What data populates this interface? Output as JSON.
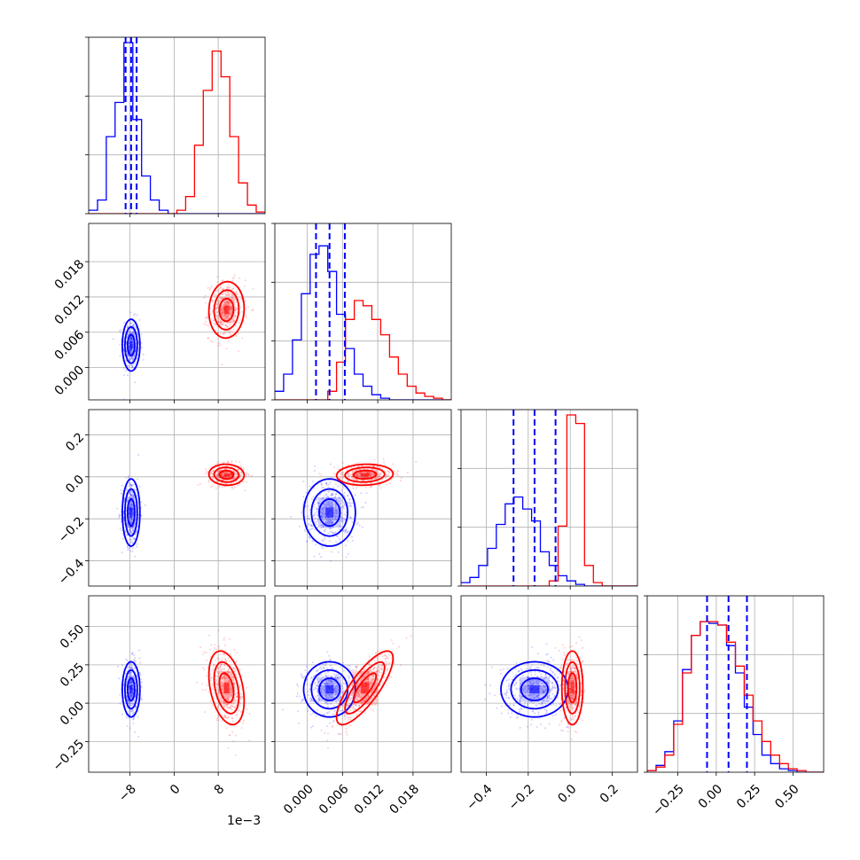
{
  "chart_data": {
    "type": "corner",
    "grid": true,
    "x_offset_label": "1e−3",
    "series": [
      {
        "name": "",
        "color": "#0000ff",
        "mean": [
          -0.0078,
          0.0038,
          -0.17,
          0.09
        ],
        "sd": [
          0.0008,
          0.0022,
          0.08,
          0.09
        ],
        "corr": [
          0,
          0,
          0,
          0,
          0,
          0
        ]
      },
      {
        "name": "",
        "color": "#ff0000",
        "mean": [
          0.0095,
          0.0098,
          0.01,
          0.1
        ],
        "sd": [
          0.0016,
          0.0024,
          0.025,
          0.12
        ],
        "corr": [
          0.05,
          -0.05,
          -0.35,
          0.08,
          0.8,
          0
        ]
      }
    ],
    "quantile_lines": {
      "color": "#0000ff",
      "style": "dashed",
      "values": [
        [
          -0.0088,
          -0.0078,
          -0.0068
        ],
        [
          0.0015,
          0.0038,
          0.0064
        ],
        [
          -0.27,
          -0.17,
          -0.07
        ],
        [
          -0.06,
          0.08,
          0.2
        ]
      ]
    },
    "axes": [
      {
        "range": [
          -0.0155,
          0.0165
        ],
        "ticks": [
          -0.008,
          0,
          0.008
        ],
        "tick_labels": [
          "−8",
          "0",
          "8"
        ]
      },
      {
        "range": [
          -0.0055,
          0.0245
        ],
        "ticks": [
          0,
          0.006,
          0.012,
          0.018
        ],
        "tick_labels": [
          "0.000",
          "0.006",
          "0.012",
          "0.018"
        ]
      },
      {
        "range": [
          -0.52,
          0.32
        ],
        "ticks": [
          -0.4,
          -0.2,
          0,
          0.2
        ],
        "tick_labels": [
          "−0.4",
          "−0.2",
          "0.0",
          "0.2"
        ]
      },
      {
        "range": [
          -0.45,
          0.7
        ],
        "ticks": [
          -0.25,
          0,
          0.25,
          0.5
        ],
        "tick_labels": [
          "−0.25",
          "0.00",
          "0.25",
          "0.50"
        ]
      }
    ],
    "histograms": [
      {
        "bins": 20,
        "blue": [
          0.02,
          0.08,
          0.45,
          0.65,
          1.0,
          0.55,
          0.22,
          0.08,
          0.02,
          0,
          0,
          0,
          0,
          0,
          0,
          0,
          0,
          0,
          0,
          0
        ],
        "red": [
          0,
          0,
          0,
          0,
          0,
          0,
          0,
          0,
          0,
          0,
          0.02,
          0.1,
          0.4,
          0.72,
          0.95,
          0.8,
          0.45,
          0.18,
          0.05,
          0.01
        ]
      },
      {
        "bins": 20,
        "blue": [
          0.05,
          0.15,
          0.35,
          0.62,
          0.85,
          0.9,
          0.75,
          0.5,
          0.3,
          0.15,
          0.08,
          0.03,
          0.01,
          0,
          0,
          0,
          0,
          0,
          0,
          0
        ],
        "red": [
          0,
          0,
          0,
          0,
          0,
          0,
          0.05,
          0.22,
          0.47,
          0.58,
          0.55,
          0.47,
          0.38,
          0.25,
          0.15,
          0.08,
          0.04,
          0.02,
          0.01,
          0
        ]
      },
      {
        "bins": 20,
        "blue": [
          0.02,
          0.05,
          0.12,
          0.22,
          0.36,
          0.48,
          0.52,
          0.45,
          0.38,
          0.2,
          0.12,
          0.06,
          0.03,
          0.01,
          0,
          0,
          0,
          0,
          0,
          0
        ],
        "red": [
          0,
          0,
          0,
          0,
          0,
          0,
          0,
          0,
          0,
          0,
          0.03,
          0.35,
          1.0,
          0.95,
          0.12,
          0.02,
          0,
          0,
          0,
          0
        ]
      },
      {
        "bins": 20,
        "blue": [
          0.01,
          0.04,
          0.12,
          0.3,
          0.6,
          0.8,
          0.88,
          0.87,
          0.86,
          0.74,
          0.58,
          0.38,
          0.22,
          0.1,
          0.05,
          0.02,
          0.01,
          0,
          0,
          0
        ],
        "red": [
          0.01,
          0.03,
          0.1,
          0.28,
          0.58,
          0.8,
          0.88,
          0.88,
          0.86,
          0.76,
          0.62,
          0.45,
          0.3,
          0.18,
          0.1,
          0.05,
          0.02,
          0.01,
          0,
          0
        ]
      }
    ]
  }
}
